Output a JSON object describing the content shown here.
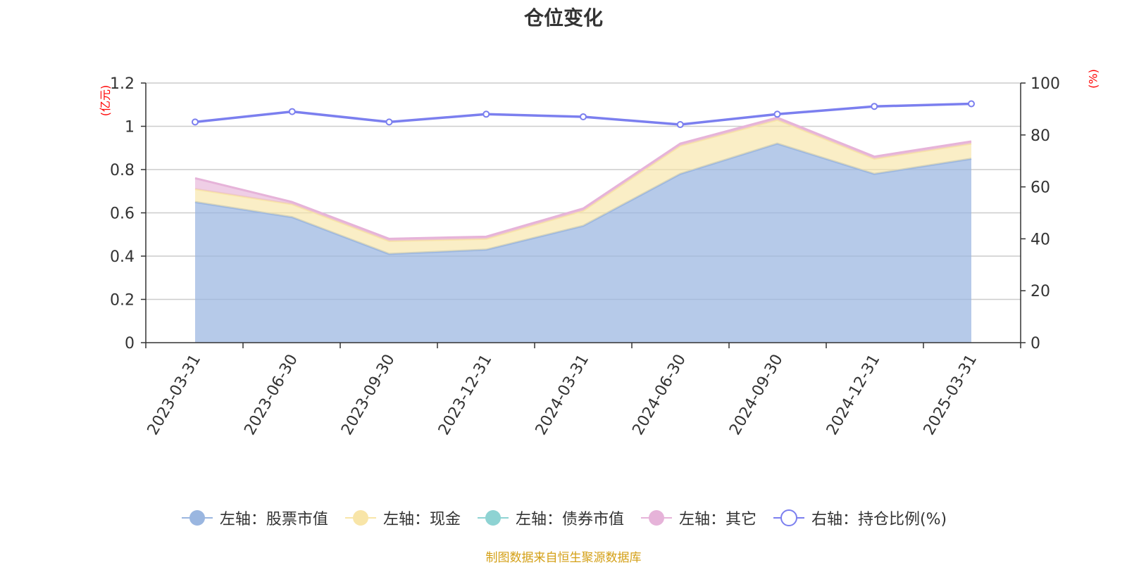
{
  "chart_data": {
    "type": "area",
    "title": "仓位变化",
    "categories": [
      "2023-03-31",
      "2023-06-30",
      "2023-09-30",
      "2023-12-31",
      "2024-03-31",
      "2024-06-30",
      "2024-09-30",
      "2024-12-31",
      "2025-03-31"
    ],
    "left_axis": {
      "unit": "(亿元)",
      "ylim": [
        0,
        1.2
      ],
      "ticks": [
        0,
        0.2,
        0.4,
        0.6,
        0.8,
        1,
        1.2
      ]
    },
    "right_axis": {
      "unit": "(%)",
      "ylim": [
        0,
        100
      ],
      "ticks": [
        0,
        20,
        40,
        60,
        80,
        100
      ]
    },
    "grid": true,
    "legend_position": "bottom",
    "series": [
      {
        "name": "左轴：股票市值",
        "axis": "left",
        "stacked": true,
        "color": "#9ab6e0",
        "values": [
          0.65,
          0.58,
          0.41,
          0.43,
          0.54,
          0.78,
          0.92,
          0.78,
          0.85
        ]
      },
      {
        "name": "左轴：现金",
        "axis": "left",
        "stacked": true,
        "color": "#f8e5a8",
        "values": [
          0.06,
          0.06,
          0.06,
          0.05,
          0.07,
          0.13,
          0.11,
          0.07,
          0.07
        ]
      },
      {
        "name": "左轴：债券市值",
        "axis": "left",
        "stacked": true,
        "color": "#8ed3d3",
        "values": [
          0,
          0,
          0,
          0,
          0,
          0,
          0,
          0,
          0
        ]
      },
      {
        "name": "左轴：其它",
        "axis": "left",
        "stacked": true,
        "color": "#e6b3d9",
        "values": [
          0.05,
          0.01,
          0.01,
          0.01,
          0.01,
          0.01,
          0.01,
          0.01,
          0.01
        ]
      },
      {
        "name": "右轴：持仓比例(%)",
        "axis": "right",
        "stacked": false,
        "color": "#7b7fef",
        "values": [
          85,
          89,
          85,
          88,
          87,
          84,
          88,
          91,
          92
        ]
      }
    ]
  },
  "source": "制图数据来自恒生聚源数据库"
}
